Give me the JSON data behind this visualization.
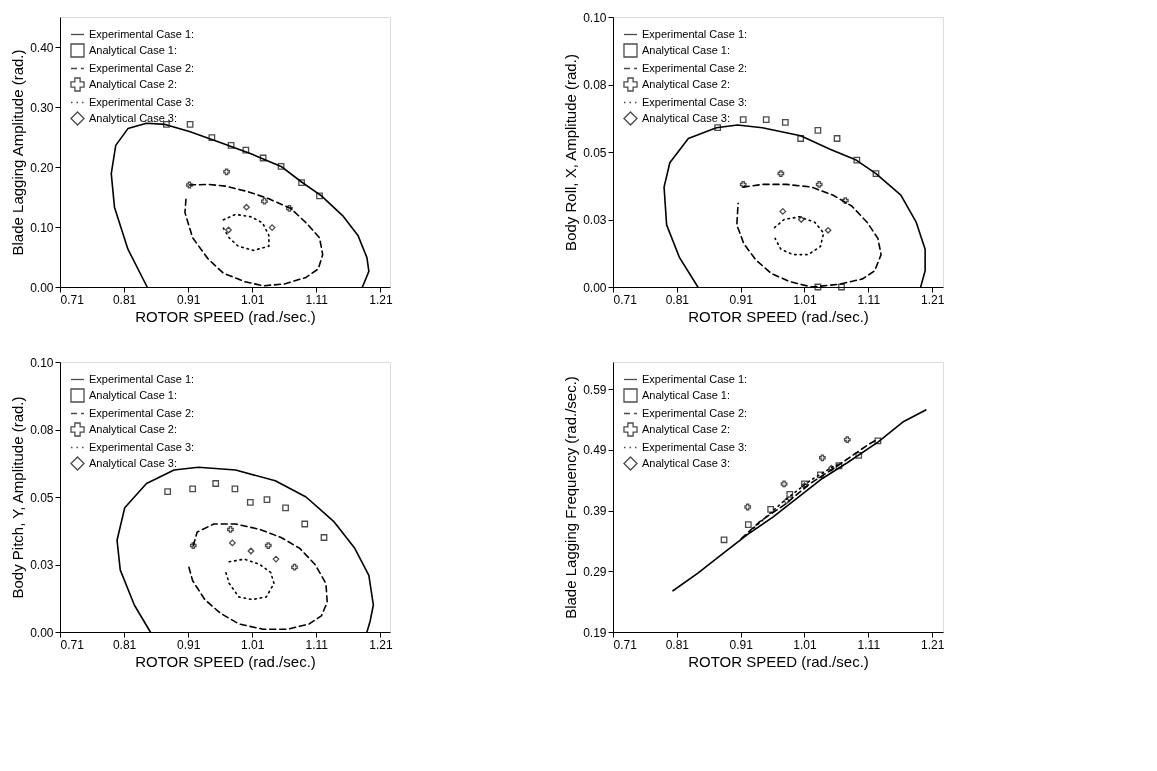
{
  "chart_data": [
    {
      "type": "line",
      "xlabel": "ROTOR SPEED (rad./sec.)",
      "ylabel": "Blade Lagging Amplitude (rad.)",
      "xlim": [
        0.71,
        1.225
      ],
      "ylim": [
        0,
        0.45
      ],
      "xticks": [
        0.71,
        0.81,
        0.91,
        1.01,
        1.11,
        1.21
      ],
      "yticks": [
        {
          "value": 0,
          "label": "0.00"
        },
        {
          "value": 0.1,
          "label": "0.10"
        },
        {
          "value": 0.2,
          "label": "0.20"
        },
        {
          "value": 0.3,
          "label": "0.30"
        },
        {
          "value": 0.4,
          "label": "0.40"
        }
      ],
      "legend": "top left",
      "series": [
        {
          "name": "Experimental Case 1:",
          "color": "#000000",
          "line_style": "solid",
          "x": [
            0.846,
            0.816,
            0.795,
            0.79,
            0.797,
            0.816,
            0.845,
            0.874,
            0.912,
            0.96,
            1.008,
            1.055,
            1.087,
            1.118,
            1.151,
            1.175,
            1.189,
            1.192,
            1.182
          ],
          "values": [
            0,
            0.063,
            0.133,
            0.189,
            0.236,
            0.264,
            0.273,
            0.271,
            0.259,
            0.241,
            0.222,
            0.201,
            0.175,
            0.152,
            0.119,
            0.086,
            0.049,
            0.026,
            0
          ]
        },
        {
          "name": "Analytical Case 1:",
          "color": "#000000",
          "type": "scatter",
          "marker": "square",
          "x": [
            0.876,
            0.913,
            0.947,
            0.977,
            1.0,
            1.027,
            1.055,
            1.087,
            1.115
          ],
          "values": [
            0.271,
            0.271,
            0.249,
            0.236,
            0.228,
            0.215,
            0.201,
            0.174,
            0.152
          ]
        },
        {
          "name": "Experimental Case 2:",
          "color": "#000000",
          "line_style": "dashed",
          "x": [
            0.912,
            0.941,
            0.969,
            1.003,
            1.036,
            1.07,
            1.096,
            1.115,
            1.12,
            1.113,
            1.094,
            1.06,
            1.027,
            0.998,
            0.965,
            0.941,
            0.917,
            0.905,
            0.907
          ],
          "values": [
            0.17,
            0.171,
            0.168,
            0.159,
            0.147,
            0.131,
            0.105,
            0.082,
            0.054,
            0.03,
            0.016,
            0.005,
            0.002,
            0.009,
            0.023,
            0.047,
            0.082,
            0.124,
            0.152
          ]
        },
        {
          "name": "Analytical Case 2:",
          "color": "#000000",
          "type": "scatter",
          "marker": "cross",
          "x": [
            0.912,
            0.97,
            1.029,
            1.068
          ],
          "values": [
            0.17,
            0.192,
            0.143,
            0.131
          ]
        },
        {
          "name": "Experimental Case 3:",
          "color": "#000000",
          "line_style": "dotted",
          "x": [
            0.965,
            0.984,
            1.008,
            1.026,
            1.036,
            1.036,
            1.012,
            0.988,
            0.974,
            0.965
          ],
          "values": [
            0.112,
            0.121,
            0.117,
            0.107,
            0.086,
            0.068,
            0.061,
            0.068,
            0.082,
            0.098
          ]
        },
        {
          "name": "Analytical Case 3:",
          "color": "#000000",
          "type": "scatter",
          "marker": "diamond",
          "x": [
            0.973,
            1.001,
            1.041
          ],
          "values": [
            0.095,
            0.133,
            0.099
          ]
        }
      ]
    },
    {
      "type": "line",
      "xlabel": "ROTOR SPEED (rad./sec.)",
      "ylabel": "Body Roll, X, Amplitude (rad.)",
      "xlim": [
        0.71,
        1.227
      ],
      "ylim": [
        0,
        0.1
      ],
      "xticks": [
        0.71,
        0.81,
        0.91,
        1.01,
        1.11,
        1.21
      ],
      "yticks": [
        {
          "value": 0,
          "label": "0.00"
        },
        {
          "value": 0.025,
          "label": "0.03"
        },
        {
          "value": 0.05,
          "label": "0.05"
        },
        {
          "value": 0.075,
          "label": "0.08"
        },
        {
          "value": 0.1,
          "label": "0.10"
        }
      ],
      "legend": "top left",
      "series": [
        {
          "name": "Experimental Case 1:",
          "color": "#000000",
          "line_style": "solid",
          "x": [
            0.843,
            0.814,
            0.794,
            0.79,
            0.799,
            0.828,
            0.872,
            0.905,
            0.944,
            1.004,
            1.05,
            1.091,
            1.122,
            1.161,
            1.185,
            1.199,
            1.199,
            1.192
          ],
          "values": [
            0,
            0.011,
            0.023,
            0.037,
            0.046,
            0.055,
            0.059,
            0.06,
            0.059,
            0.056,
            0.051,
            0.047,
            0.042,
            0.034,
            0.024,
            0.014,
            0.006,
            0
          ]
        },
        {
          "name": "Analytical Case 1:",
          "color": "#000000",
          "type": "scatter",
          "marker": "square",
          "x": [
            0.874,
            0.914,
            0.95,
            0.98,
            1.004,
            1.031,
            1.061,
            1.092,
            1.122,
            1.031,
            1.068
          ],
          "values": [
            0.059,
            0.062,
            0.062,
            0.061,
            0.055,
            0.058,
            0.055,
            0.047,
            0.042,
            0,
            0
          ]
        },
        {
          "name": "Experimental Case 2:",
          "color": "#000000",
          "line_style": "dashed",
          "x": [
            0.914,
            0.944,
            0.982,
            1.021,
            1.055,
            1.084,
            1.108,
            1.125,
            1.13,
            1.12,
            1.101,
            1.064,
            1.021,
            0.987,
            0.958,
            0.934,
            0.915,
            0.904,
            0.906
          ],
          "values": [
            0.037,
            0.038,
            0.038,
            0.037,
            0.034,
            0.03,
            0.024,
            0.018,
            0.012,
            0.006,
            0.003,
            0.001,
            0,
            0.002,
            0.005,
            0.01,
            0.016,
            0.023,
            0.031
          ]
        },
        {
          "name": "Analytical Case 2:",
          "color": "#000000",
          "type": "scatter",
          "marker": "cross",
          "x": [
            0.914,
            0.973,
            1.033,
            1.074
          ],
          "values": [
            0.038,
            0.042,
            0.038,
            0.032
          ]
        },
        {
          "name": "Experimental Case 3:",
          "color": "#000000",
          "line_style": "dotted",
          "x": [
            0.963,
            0.978,
            1.002,
            1.026,
            1.04,
            1.035,
            1.016,
            0.992,
            0.973,
            0.964
          ],
          "values": [
            0.022,
            0.025,
            0.026,
            0.024,
            0.02,
            0.015,
            0.012,
            0.012,
            0.014,
            0.018
          ]
        },
        {
          "name": "Analytical Case 3:",
          "color": "#000000",
          "type": "scatter",
          "marker": "diamond",
          "x": [
            0.976,
            1.005,
            1.047
          ],
          "values": [
            0.028,
            0.025,
            0.021
          ]
        }
      ]
    },
    {
      "type": "line",
      "xlabel": "ROTOR SPEED (rad./sec.)",
      "ylabel": "Body Pitch, Y, Amplitude (rad.)",
      "xlim": [
        0.71,
        1.225
      ],
      "ylim": [
        0,
        0.1
      ],
      "xticks": [
        0.71,
        0.81,
        0.91,
        1.01,
        1.11,
        1.21
      ],
      "yticks": [
        {
          "value": 0,
          "label": "0.00"
        },
        {
          "value": 0.025,
          "label": "0.03"
        },
        {
          "value": 0.05,
          "label": "0.05"
        },
        {
          "value": 0.075,
          "label": "0.08"
        },
        {
          "value": 0.1,
          "label": "0.10"
        }
      ],
      "legend": "top left",
      "series": [
        {
          "name": "Experimental Case 1:",
          "color": "#000000",
          "line_style": "solid",
          "x": [
            0.851,
            0.826,
            0.804,
            0.799,
            0.811,
            0.845,
            0.888,
            0.926,
            0.984,
            1.046,
            1.094,
            1.137,
            1.17,
            1.192,
            1.199,
            1.194,
            1.189
          ],
          "values": [
            0,
            0.01,
            0.023,
            0.034,
            0.046,
            0.055,
            0.06,
            0.061,
            0.06,
            0.056,
            0.05,
            0.041,
            0.031,
            0.021,
            0.01,
            0.004,
            0
          ]
        },
        {
          "name": "Analytical Case 1:",
          "color": "#000000",
          "type": "scatter",
          "marker": "square",
          "x": [
            0.878,
            0.917,
            0.953,
            0.983,
            1.007,
            1.033,
            1.062,
            1.092,
            1.122
          ],
          "values": [
            0.052,
            0.053,
            0.055,
            0.053,
            0.048,
            0.049,
            0.046,
            0.04,
            0.035
          ]
        },
        {
          "name": "Experimental Case 2:",
          "color": "#000000",
          "line_style": "dashed",
          "x": [
            0.918,
            0.924,
            0.95,
            0.984,
            1.022,
            1.055,
            1.084,
            1.108,
            1.125,
            1.127,
            1.118,
            1.099,
            1.065,
            1.027,
            0.989,
            0.96,
            0.936,
            0.917,
            0.91
          ],
          "values": [
            0.032,
            0.037,
            0.04,
            0.04,
            0.038,
            0.035,
            0.031,
            0.025,
            0.018,
            0.011,
            0.006,
            0.003,
            0.001,
            0.001,
            0.003,
            0.007,
            0.012,
            0.019,
            0.025
          ]
        },
        {
          "name": "Analytical Case 2:",
          "color": "#000000",
          "type": "scatter",
          "marker": "cross",
          "x": [
            0.918,
            0.976,
            1.035,
            1.076
          ],
          "values": [
            0.032,
            0.038,
            0.032,
            0.024
          ]
        },
        {
          "name": "Experimental Case 3:",
          "color": "#000000",
          "line_style": "dotted",
          "x": [
            0.974,
            0.998,
            1.022,
            1.039,
            1.044,
            1.032,
            1.01,
            0.989,
            0.974,
            0.969
          ],
          "values": [
            0.026,
            0.027,
            0.025,
            0.022,
            0.018,
            0.013,
            0.012,
            0.013,
            0.018,
            0.022
          ]
        },
        {
          "name": "Analytical Case 3:",
          "color": "#000000",
          "type": "scatter",
          "marker": "diamond",
          "x": [
            0.979,
            1.008,
            1.047
          ],
          "values": [
            0.033,
            0.03,
            0.027
          ]
        }
      ]
    },
    {
      "type": "line",
      "xlabel": "ROTOR SPEED (rad./sec.)",
      "ylabel": "Blade Lagging Frequency (rad./sec.)",
      "xlim": [
        0.71,
        1.227
      ],
      "ylim": [
        0.19,
        0.635
      ],
      "xticks": [
        0.71,
        0.81,
        0.91,
        1.01,
        1.11,
        1.21
      ],
      "yticks": [
        0.19,
        0.29,
        0.39,
        0.49,
        0.59
      ],
      "legend": "top left",
      "series": [
        {
          "name": "Experimental Case 1:",
          "color": "#000000",
          "line_style": "solid",
          "x": [
            0.804,
            0.843,
            0.882,
            0.921,
            0.96,
            0.999,
            1.038,
            1.077,
            1.125,
            1.164,
            1.2
          ],
          "values": [
            0.258,
            0.287,
            0.319,
            0.351,
            0.379,
            0.411,
            0.443,
            0.469,
            0.503,
            0.536,
            0.556
          ]
        },
        {
          "name": "Analytical Case 1:",
          "color": "#000000",
          "type": "scatter",
          "marker": "square",
          "x": [
            0.884,
            0.922,
            0.957,
            0.987,
            1.01,
            1.035,
            1.064,
            1.095,
            1.125
          ],
          "values": [
            0.342,
            0.367,
            0.392,
            0.417,
            0.434,
            0.449,
            0.464,
            0.481,
            0.505
          ]
        },
        {
          "name": "Experimental Case 2:",
          "color": "#000000",
          "line_style": "dashed",
          "x": [
            0.911,
            0.94,
            0.979,
            1.018,
            1.062,
            1.11,
            1.125
          ],
          "values": [
            0.344,
            0.372,
            0.4,
            0.434,
            0.464,
            0.499,
            0.508
          ]
        },
        {
          "name": "Analytical Case 2:",
          "color": "#000000",
          "type": "scatter",
          "marker": "cross",
          "x": [
            0.921,
            0.978,
            1.038,
            1.077
          ],
          "values": [
            0.396,
            0.434,
            0.477,
            0.507
          ]
        },
        {
          "name": "Experimental Case 3:",
          "color": "#000000",
          "line_style": "dotted",
          "x": [
            0.911,
            0.979,
            1.018,
            1.057,
            1.067
          ],
          "values": [
            0.343,
            0.407,
            0.439,
            0.464,
            0.466
          ]
        },
        {
          "name": "Analytical Case 3:",
          "color": "#000000",
          "type": "scatter",
          "marker": "diamond",
          "x": [
            0.982,
            1.01,
            1.052
          ],
          "values": [
            0.406,
            0.431,
            0.46
          ]
        }
      ]
    }
  ]
}
